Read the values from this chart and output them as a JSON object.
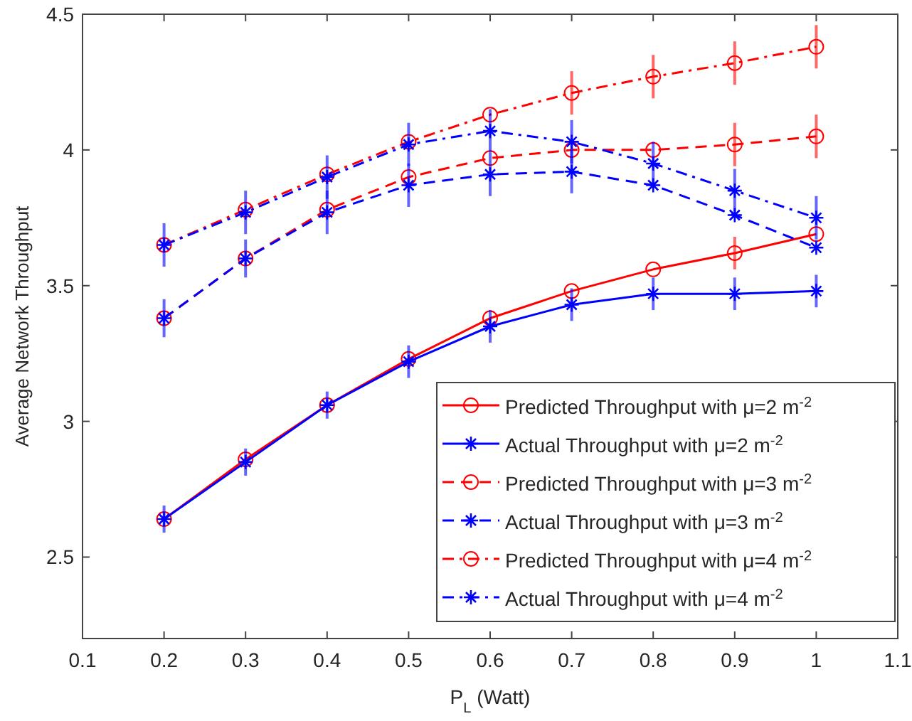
{
  "chart_data": {
    "type": "line",
    "xlabel": "P$_{L}$ (Watt)",
    "ylabel": "Average Network Throughput",
    "x": [
      0.2,
      0.3,
      0.4,
      0.5,
      0.6,
      0.7,
      0.8,
      0.9,
      1
    ],
    "xlim": [
      0.1,
      1.1
    ],
    "xticks": [
      0.1,
      0.2,
      0.3,
      0.4,
      0.5,
      0.6,
      0.7,
      0.8,
      0.9,
      1,
      1.1
    ],
    "ylim": [
      2.2,
      4.5
    ],
    "yticks": [
      2.5,
      3,
      3.5,
      4,
      4.5
    ],
    "grid": false,
    "legend": "bottom right",
    "series": [
      {
        "name": "Predicted Throughput with μ=2 m$^{-2}$",
        "color": "#ff0000",
        "marker": "circle",
        "line_style": "solid",
        "values": [
          2.64,
          2.86,
          3.06,
          3.23,
          3.38,
          3.48,
          3.56,
          3.62,
          3.69
        ],
        "errors": [
          null,
          null,
          null,
          null,
          null,
          null,
          null,
          0.06,
          null
        ]
      },
      {
        "name": "Actual Throughput with μ=2 m$^{-2}$",
        "color": "#0000ff",
        "marker": "cross",
        "line_style": "solid",
        "values": [
          2.64,
          2.85,
          3.06,
          3.22,
          3.35,
          3.43,
          3.47,
          3.47,
          3.48
        ],
        "errors": [
          0.05,
          0.05,
          0.05,
          0.06,
          0.06,
          0.06,
          0.06,
          0.06,
          0.06
        ]
      },
      {
        "name": "Predicted Throughput with μ=3 m$^{-2}$",
        "color": "#ff0000",
        "marker": "circle",
        "line_style": "dashed",
        "values": [
          3.38,
          3.6,
          3.78,
          3.9,
          3.97,
          4,
          4,
          4.02,
          4.05
        ],
        "errors": [
          null,
          null,
          null,
          null,
          null,
          null,
          null,
          0.08,
          0.08
        ]
      },
      {
        "name": "Actual Throughput with μ=3 m$^{-2}$",
        "color": "#0000ff",
        "marker": "cross",
        "line_style": "dashed",
        "values": [
          3.38,
          3.6,
          3.77,
          3.87,
          3.91,
          3.92,
          3.87,
          3.76,
          3.64
        ],
        "errors": [
          0.07,
          0.07,
          0.08,
          0.08,
          0.08,
          0.08,
          null,
          null,
          null
        ]
      },
      {
        "name": "Predicted Throughput with μ=4 m$^{-2}$",
        "color": "#ff0000",
        "marker": "circle",
        "line_style": "dashdot",
        "values": [
          3.65,
          3.78,
          3.91,
          4.03,
          4.13,
          4.21,
          4.27,
          4.32,
          4.38
        ],
        "errors": [
          null,
          null,
          null,
          null,
          null,
          0.08,
          0.08,
          0.08,
          0.08
        ]
      },
      {
        "name": "Actual Throughput with μ=4 m$^{-2}$",
        "color": "#0000ff",
        "marker": "cross",
        "line_style": "dashdot",
        "values": [
          3.65,
          3.77,
          3.9,
          4.02,
          4.07,
          4.03,
          3.95,
          3.85,
          3.75
        ],
        "errors": [
          0.08,
          0.08,
          0.08,
          0.08,
          0.08,
          0.08,
          0.08,
          0.08,
          0.08
        ]
      }
    ]
  }
}
